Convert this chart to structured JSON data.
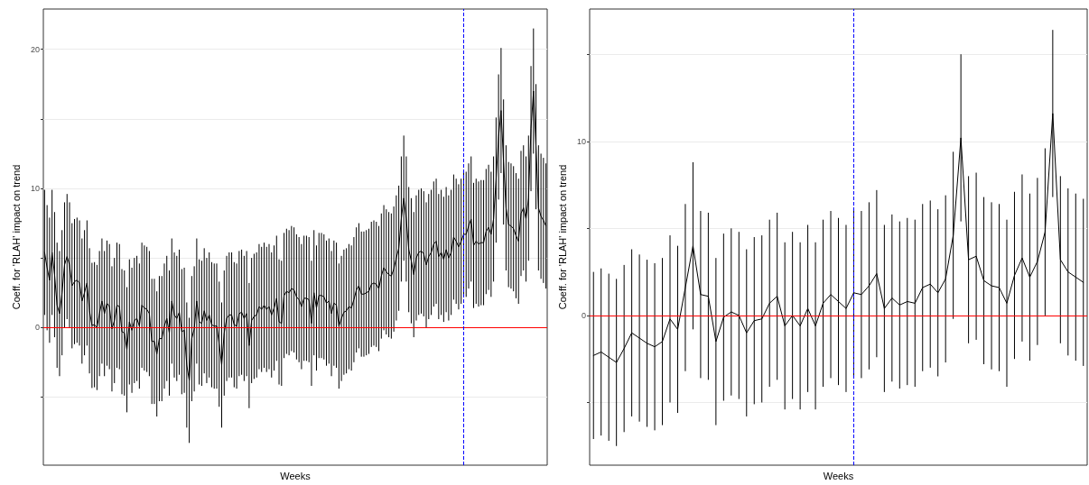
{
  "chart_data": [
    {
      "type": "line",
      "xlabel": "Weeks",
      "ylabel": "Coeff. for 'RLAH' impact on trend",
      "color": "#000000",
      "line_style": "solid",
      "grid": "y",
      "tick_labels": "y",
      "categories": [
        null,
        null,
        null,
        null,
        null,
        null,
        null,
        null,
        null,
        null,
        null,
        null,
        null,
        null,
        null,
        null,
        null,
        null,
        null,
        null,
        null,
        null,
        null,
        null,
        null,
        null,
        null,
        null,
        null,
        null,
        null,
        null,
        null,
        null,
        null,
        null,
        null,
        null,
        null,
        null,
        null,
        null,
        null,
        null,
        null,
        null,
        null,
        null,
        null,
        null,
        null,
        null,
        null,
        null,
        null,
        null,
        null,
        null,
        null,
        null,
        null,
        null,
        null,
        null,
        null,
        null,
        null,
        null,
        null,
        null,
        null,
        null,
        null,
        null,
        null,
        null,
        null,
        null,
        null,
        null,
        null,
        null,
        null,
        null,
        null,
        null,
        null,
        null,
        null,
        null,
        null,
        null,
        null,
        null,
        null,
        null,
        null,
        null,
        null,
        null,
        null,
        null,
        null,
        null,
        null,
        null,
        null,
        null,
        null,
        null,
        null,
        null,
        null,
        null,
        null,
        null,
        null,
        null,
        null,
        null,
        null,
        null,
        null,
        null,
        null,
        null,
        null,
        null,
        null,
        null,
        null,
        null,
        null,
        null,
        null,
        null,
        null,
        null,
        null,
        null,
        null,
        null,
        null,
        null,
        null,
        null,
        null,
        null,
        null,
        null,
        null,
        null,
        null,
        null,
        null,
        null,
        null,
        null,
        null,
        null,
        null,
        null,
        null,
        null,
        null,
        null,
        null,
        null,
        null,
        null,
        null,
        null,
        null,
        null,
        null,
        null,
        null,
        null,
        null,
        null,
        null,
        null,
        null,
        null,
        null,
        null,
        null,
        null,
        null,
        null,
        null,
        null,
        null,
        null,
        null,
        null,
        null,
        null,
        null,
        null,
        null,
        null
      ],
      "values": [
        5.4,
        4.3,
        3.4,
        5.4,
        3.8,
        1.6,
        1.0,
        2.5,
        4.5,
        5.1,
        4.5,
        3.0,
        3.3,
        3.4,
        3.2,
        1.9,
        2.5,
        3.2,
        1.2,
        0.15,
        0.2,
        0,
        1.0,
        1.9,
        1.0,
        1.75,
        1.5,
        -0.1,
        0.5,
        1.6,
        1.5,
        -0.3,
        -0.4,
        -1.6,
        0.4,
        -0.2,
        0.5,
        0.65,
        0.1,
        1.6,
        1.4,
        1.3,
        1.0,
        -1.0,
        -1.0,
        -1.9,
        -0.8,
        -0.8,
        0.1,
        0.65,
        -0.4,
        1.9,
        0.9,
        0.65,
        1.1,
        -0.3,
        -0.2,
        -2.7,
        -3.8,
        -0.8,
        -0.1,
        1.9,
        0.4,
        0.3,
        1.2,
        0.5,
        0.9,
        0.2,
        0.1,
        0.1,
        -1.2,
        -2.7,
        -0.4,
        0.65,
        0.9,
        0.9,
        0.2,
        0.1,
        1.0,
        1.1,
        0.65,
        1.0,
        -1.3,
        0.5,
        0.8,
        0.9,
        1.5,
        1.3,
        1.6,
        1.3,
        1.5,
        0.9,
        1.4,
        2.1,
        0.4,
        0.3,
        2.3,
        2.6,
        2.5,
        2.8,
        2.7,
        2.2,
        2.0,
        1.5,
        2.1,
        2.1,
        2.0,
        0.3,
        2.5,
        1.4,
        2.3,
        2.3,
        2.2,
        1.75,
        1.9,
        1.0,
        1.75,
        1.6,
        0.1,
        0.65,
        1.1,
        1.2,
        1.5,
        1.4,
        2.0,
        2.7,
        3.0,
        2.4,
        2.4,
        2.5,
        2.6,
        3.1,
        3.2,
        3.1,
        2.8,
        3.7,
        4.3,
        4.0,
        3.8,
        3.7,
        4.2,
        5.0,
        5.7,
        7.8,
        9.3,
        7.8,
        5.6,
        4.8,
        3.8,
        5.0,
        5.4,
        5.5,
        5.3,
        4.5,
        5.1,
        5.4,
        6.0,
        6.2,
        5.1,
        5.4,
        4.9,
        5.6,
        5.0,
        5.4,
        6.5,
        6.2,
        5.8,
        6.2,
        6.7,
        6.7,
        7.3,
        7.8,
        5.9,
        6.2,
        6.0,
        6.1,
        6.1,
        6.9,
        7.2,
        6.7,
        7.8,
        10.6,
        13.7,
        15.6,
        11.9,
        8.6,
        7.4,
        7.3,
        7.1,
        6.6,
        6.2,
        8.2,
        8.6,
        7.8,
        9.3,
        14.3,
        17.0,
        13.0,
        8.6,
        8.0,
        7.7,
        7.3
      ],
      "errors": [
        4.5,
        4.5,
        4.5,
        4.5,
        4.5,
        4.5,
        4.5,
        4.5,
        4.5,
        4.5,
        4.5,
        4.5,
        4.5,
        4.5,
        4.5,
        4.5,
        4.5,
        4.5,
        4.5,
        4.5,
        4.5,
        4.5,
        4.5,
        4.5,
        4.5,
        4.5,
        4.5,
        4.5,
        4.5,
        4.5,
        4.5,
        4.5,
        4.5,
        4.5,
        4.5,
        4.5,
        4.5,
        4.5,
        4.5,
        4.5,
        4.5,
        4.5,
        4.5,
        4.5,
        4.5,
        4.5,
        4.5,
        4.5,
        4.5,
        4.5,
        4.5,
        4.5,
        4.5,
        4.5,
        4.5,
        4.5,
        4.5,
        4.5,
        4.5,
        4.5,
        4.5,
        4.5,
        4.5,
        4.5,
        4.5,
        4.5,
        4.5,
        4.5,
        4.5,
        4.5,
        4.5,
        4.5,
        4.5,
        4.5,
        4.5,
        4.5,
        4.5,
        4.5,
        4.5,
        4.5,
        4.5,
        4.5,
        4.5,
        4.5,
        4.5,
        4.5,
        4.5,
        4.5,
        4.5,
        4.5,
        4.5,
        4.5,
        4.5,
        4.5,
        4.5,
        4.5,
        4.5,
        4.5,
        4.5,
        4.5,
        4.5,
        4.5,
        4.5,
        4.5,
        4.5,
        4.5,
        4.5,
        4.5,
        4.5,
        4.5,
        4.5,
        4.5,
        4.5,
        4.5,
        4.5,
        4.5,
        4.5,
        4.5,
        4.5,
        4.5,
        4.5,
        4.5,
        4.5,
        4.5,
        4.5,
        4.5,
        4.5,
        4.5,
        4.5,
        4.5,
        4.5,
        4.5,
        4.5,
        4.5,
        4.5,
        4.5,
        4.5,
        4.5,
        4.5,
        4.5,
        4.5,
        4.5,
        4.5,
        4.5,
        4.5,
        4.5,
        4.5,
        4.5,
        4.5,
        4.5,
        4.5,
        4.5,
        4.5,
        4.5,
        4.5,
        4.5,
        4.5,
        4.5,
        4.5,
        4.5,
        4.5,
        4.5,
        4.5,
        4.5,
        4.5,
        4.5,
        4.5,
        4.5,
        4.5,
        4.5,
        4.5,
        4.5,
        4.5,
        4.5,
        4.5,
        4.5,
        4.5,
        4.5,
        4.5,
        4.5,
        4.5,
        4.5,
        4.5,
        4.5,
        4.5,
        4.5,
        4.5,
        4.5,
        4.5,
        4.5,
        4.5,
        4.5,
        4.5,
        4.5,
        4.5,
        4.5,
        4.5,
        4.5,
        4.5,
        4.5,
        4.5,
        4.5
      ],
      "ylim": [
        -9.9,
        22.9
      ],
      "yticks": [
        {
          "value": -5,
          "label": null
        },
        0,
        {
          "value": 5,
          "label": null
        },
        10,
        {
          "value": 15,
          "label": null
        },
        20
      ],
      "ref_lines": [
        {
          "axis": "y",
          "value": 0,
          "color": "#ff0000",
          "line_style": "solid"
        }
      ]
    },
    {
      "type": "line",
      "xlabel": "Weeks",
      "ylabel": "Coeff. for 'RLAH' impact on trend",
      "color": "#000000",
      "line_style": "solid",
      "grid": "y",
      "tick_labels": "y",
      "categories": [
        null,
        null,
        null,
        null,
        null,
        null,
        null,
        null,
        null,
        null,
        null,
        null,
        null,
        null,
        null,
        null,
        null,
        null,
        null,
        null,
        null,
        null,
        null,
        null,
        null,
        null,
        null,
        null,
        null,
        null,
        null,
        null,
        null,
        null,
        null,
        null,
        null,
        null,
        null,
        null,
        null,
        null,
        null,
        null,
        null,
        null,
        null,
        null,
        null,
        null,
        null,
        null,
        null,
        null,
        null,
        null,
        null,
        null,
        null,
        null,
        null,
        null,
        null,
        null,
        null
      ],
      "values": [
        -2.3,
        -2.1,
        -2.4,
        -2.7,
        -1.9,
        -1.0,
        -1.3,
        -1.6,
        -1.8,
        -1.5,
        -0.2,
        -0.8,
        1.6,
        4.0,
        1.2,
        1.1,
        -1.5,
        -0.1,
        0.2,
        0.0,
        -1.0,
        -0.3,
        -0.2,
        0.7,
        1.1,
        -0.6,
        0.0,
        -0.6,
        0.4,
        -0.6,
        0.7,
        1.2,
        0.8,
        0.4,
        1.3,
        1.2,
        1.7,
        2.4,
        0.4,
        1.0,
        0.6,
        0.8,
        0.7,
        1.6,
        1.8,
        1.3,
        2.1,
        4.6,
        10.2,
        3.2,
        3.4,
        2.0,
        1.7,
        1.6,
        0.7,
        2.3,
        3.3,
        2.2,
        3.1,
        4.8,
        11.6,
        3.2,
        2.5,
        2.2,
        1.9
      ],
      "errors": [
        4.8,
        4.8,
        4.8,
        4.8,
        4.8,
        4.8,
        4.8,
        4.8,
        4.8,
        4.8,
        4.8,
        4.8,
        4.8,
        4.8,
        4.8,
        4.8,
        4.8,
        4.8,
        4.8,
        4.8,
        4.8,
        4.8,
        4.8,
        4.8,
        4.8,
        4.8,
        4.8,
        4.8,
        4.8,
        4.8,
        4.8,
        4.8,
        4.8,
        4.8,
        4.8,
        4.8,
        4.8,
        4.8,
        4.8,
        4.8,
        4.8,
        4.8,
        4.8,
        4.8,
        4.8,
        4.8,
        4.8,
        4.8,
        4.8,
        4.8,
        4.8,
        4.8,
        4.8,
        4.8,
        4.8,
        4.8,
        4.8,
        4.8,
        4.8,
        4.8,
        4.8,
        4.8,
        4.8,
        4.8,
        4.8
      ],
      "ylim": [
        -8.6,
        17.6
      ],
      "yticks": [
        {
          "value": -5,
          "label": null
        },
        0,
        {
          "value": 5,
          "label": null
        },
        10,
        {
          "value": 15,
          "label": null
        }
      ],
      "ref_lines": [
        {
          "axis": "y",
          "value": 0,
          "color": "#ff0000",
          "line_style": "solid"
        }
      ]
    }
  ]
}
